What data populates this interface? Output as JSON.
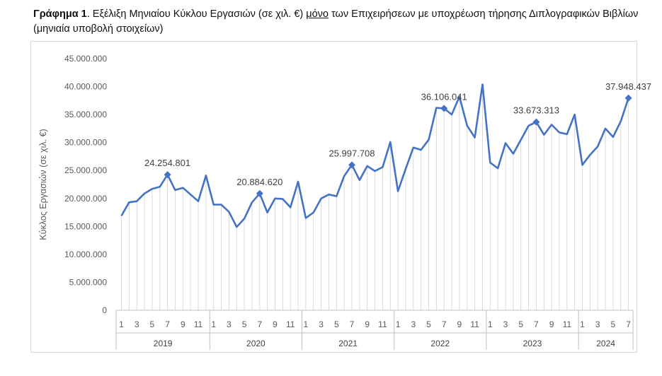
{
  "caption": {
    "label": "Γράφημα 1",
    "text_before": ". Εξέλιξη Μηνιαίου Κύκλου Εργασιών (σε χιλ. €) ",
    "underlined": "μόνο",
    "text_after": " των Επιχειρήσεων με υποχρέωση τήρησης Διπλογραφικών Βιβλίων (μηνιαία υποβολή στοιχείων)"
  },
  "chart_data": {
    "type": "line",
    "ylabel": "Κύκλος Εργασιών (σε χιλ. €)",
    "xlabel": "",
    "ylim": [
      0,
      45000000
    ],
    "yticks": [
      0,
      5000000,
      10000000,
      15000000,
      20000000,
      25000000,
      30000000,
      35000000,
      40000000,
      45000000
    ],
    "ytick_labels": [
      "0",
      "5.000.000",
      "10.000.000",
      "15.000.000",
      "20.000.000",
      "25.000.000",
      "30.000.000",
      "35.000.000",
      "40.000.000",
      "45.000.000"
    ],
    "grid": "vertical drop lines",
    "line_color": "#4472C4",
    "drop_line_color": "#d9d9d9",
    "years": [
      {
        "label": "2019",
        "months": 12
      },
      {
        "label": "2020",
        "months": 12
      },
      {
        "label": "2021",
        "months": 12
      },
      {
        "label": "2022",
        "months": 12
      },
      {
        "label": "2023",
        "months": 12
      },
      {
        "label": "2024",
        "months": 7
      }
    ],
    "month_tick_labels": [
      "1",
      "",
      "3",
      "",
      "5",
      "",
      "7",
      "",
      "9",
      "",
      "11",
      ""
    ],
    "values": [
      16900000,
      19300000,
      19500000,
      20900000,
      21700000,
      22100000,
      24254801,
      21500000,
      21900000,
      20700000,
      19500000,
      24100000,
      18900000,
      18900000,
      17600000,
      14900000,
      16400000,
      19300000,
      20884620,
      17500000,
      20000000,
      19900000,
      18400000,
      23000000,
      16500000,
      17500000,
      20000000,
      20700000,
      20400000,
      24000000,
      25997708,
      23300000,
      25800000,
      24900000,
      25600000,
      30100000,
      21300000,
      25300000,
      29100000,
      28700000,
      30500000,
      36200000,
      36106041,
      35000000,
      38200000,
      33000000,
      30900000,
      40400000,
      26400000,
      25400000,
      29900000,
      28000000,
      30500000,
      33000000,
      33673313,
      31400000,
      33200000,
      31800000,
      31500000,
      35000000,
      26000000,
      27800000,
      29300000,
      32500000,
      31000000,
      33800000,
      37948437
    ],
    "labeled_points": [
      {
        "index": 6,
        "label": "24.254.801"
      },
      {
        "index": 18,
        "label": "20.884.620"
      },
      {
        "index": 30,
        "label": "25.997.708"
      },
      {
        "index": 42,
        "label": "36.106.041"
      },
      {
        "index": 54,
        "label": "33.673.313"
      },
      {
        "index": 66,
        "label": "37.948.437"
      }
    ]
  }
}
